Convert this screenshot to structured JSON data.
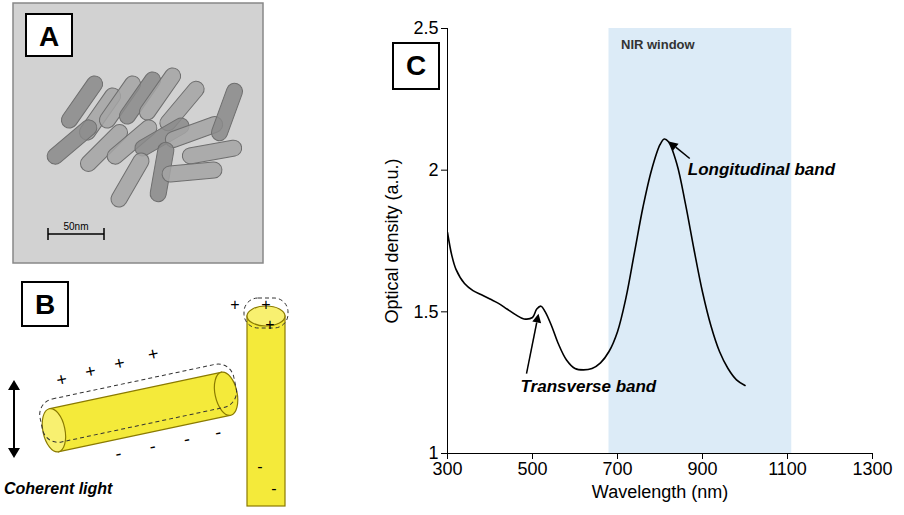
{
  "panels": {
    "A": {
      "label": "A",
      "scale_bar": "50nm"
    },
    "B": {
      "label": "B",
      "caption": "Coherent light",
      "positive_charge": "+",
      "negative_charge": "-"
    },
    "C": {
      "label": "C"
    }
  },
  "chart_data": {
    "type": "line",
    "x_label": "Wavelength (nm)",
    "y_label": "Optical density (a.u.)",
    "x": [
      300,
      310,
      320,
      340,
      360,
      380,
      400,
      420,
      440,
      460,
      480,
      500,
      510,
      520,
      530,
      545,
      560,
      580,
      600,
      620,
      640,
      660,
      680,
      700,
      720,
      740,
      760,
      780,
      800,
      810,
      820,
      840,
      860,
      880,
      900,
      920,
      940,
      960,
      980,
      1000
    ],
    "values": [
      1.78,
      1.7,
      1.65,
      1.6,
      1.575,
      1.56,
      1.545,
      1.53,
      1.51,
      1.49,
      1.475,
      1.48,
      1.51,
      1.52,
      1.5,
      1.45,
      1.39,
      1.33,
      1.3,
      1.295,
      1.3,
      1.32,
      1.36,
      1.43,
      1.55,
      1.71,
      1.87,
      2.0,
      2.09,
      2.11,
      2.1,
      2.02,
      1.88,
      1.72,
      1.57,
      1.45,
      1.36,
      1.3,
      1.26,
      1.24
    ],
    "color": "#000000",
    "xlim": [
      300,
      1300
    ],
    "xticks": [
      300,
      500,
      700,
      900,
      1100,
      1300
    ],
    "ylim": [
      1,
      2.5
    ],
    "yticks": [
      1,
      1.5,
      2,
      2.5
    ],
    "grid": false,
    "shaded_region": {
      "label": "NIR window",
      "x": [
        680,
        1110
      ],
      "color": "#dcebf7"
    },
    "annotations": [
      {
        "text": "Longitudinal band",
        "x": 810,
        "y": 2.11
      },
      {
        "text": "Transverse band",
        "x": 520,
        "y": 1.52
      }
    ]
  }
}
